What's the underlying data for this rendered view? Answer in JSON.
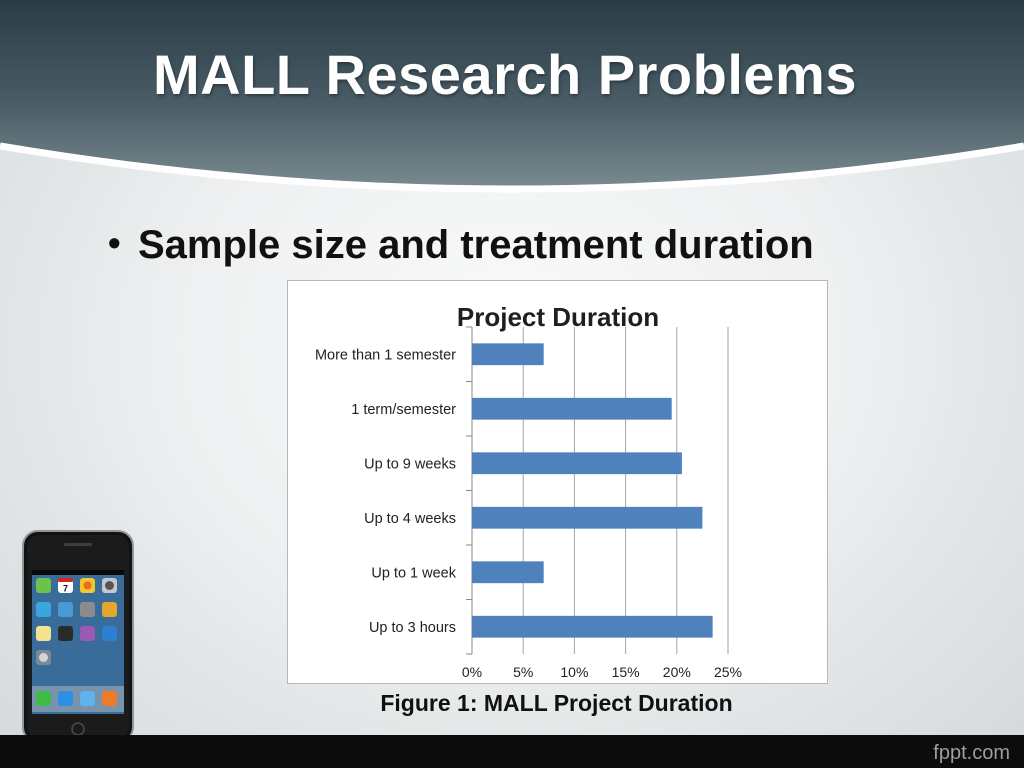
{
  "slide": {
    "title": "MALL Research Problems",
    "bullet": "Sample size and treatment duration",
    "caption": "Figure 1: MALL Project Duration",
    "brand": "fppt.com"
  },
  "phone": {
    "calendar_day": "7"
  },
  "colors": {
    "bar": "#4f81bd",
    "header_top": "#2c3e47",
    "header_bottom": "#74848a"
  },
  "chart_data": {
    "type": "bar",
    "orientation": "horizontal",
    "title": "Project Duration",
    "categories": [
      "More than 1 semester",
      "1 term/semester",
      "Up to 9 weeks",
      "Up to 4 weeks",
      "Up to 1 week",
      "Up to 3 hours"
    ],
    "values": [
      7,
      19.5,
      20.5,
      22.5,
      7,
      23.5
    ],
    "xlim": [
      0,
      25
    ],
    "x_ticks": [
      "0%",
      "5%",
      "10%",
      "15%",
      "20%",
      "25%"
    ],
    "tick_values": [
      0,
      5,
      10,
      15,
      20,
      25
    ],
    "grid": true,
    "legend": "none"
  }
}
